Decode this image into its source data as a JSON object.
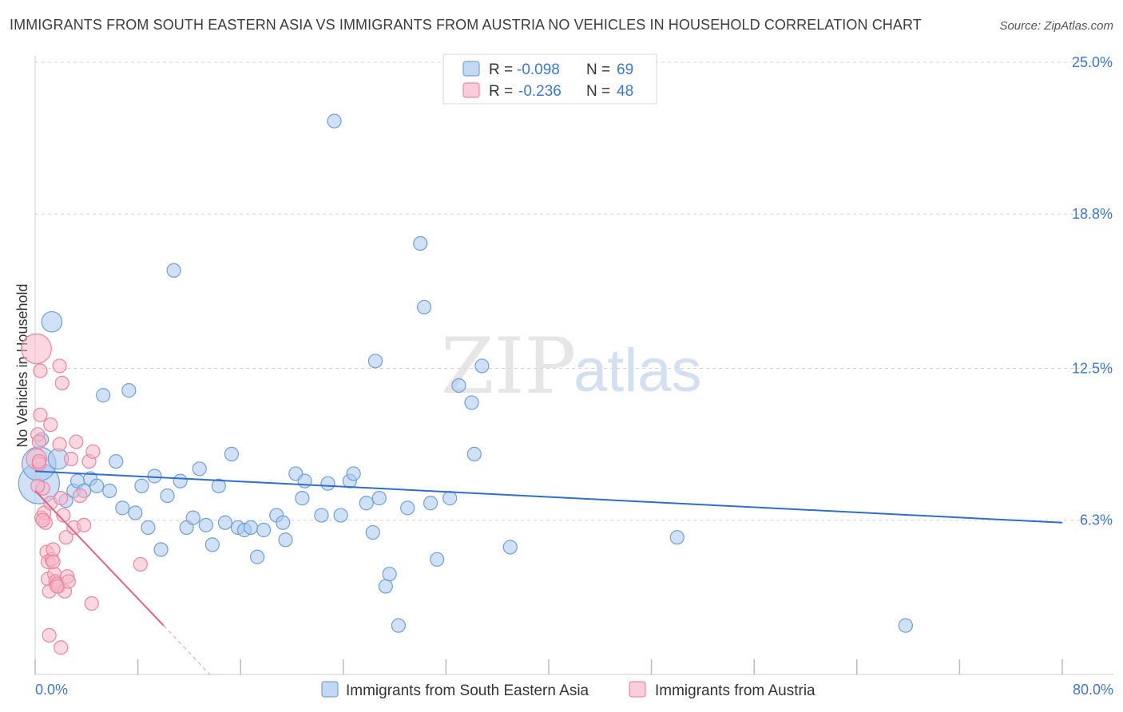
{
  "header": {
    "title": "IMMIGRANTS FROM SOUTH EASTERN ASIA VS IMMIGRANTS FROM AUSTRIA NO VEHICLES IN HOUSEHOLD CORRELATION CHART",
    "source": "Source: ZipAtlas.com"
  },
  "watermark": {
    "zip": "ZIP",
    "atlas": "atlas"
  },
  "legend": {
    "rows": [
      {
        "r_label": "R =",
        "r_value": "-0.098",
        "n_label": "N =",
        "n_value": "69",
        "color": "#a9c8ee",
        "stroke": "#7aa3d8"
      },
      {
        "r_label": "R =",
        "r_value": "-0.236",
        "n_label": "N =",
        "n_value": "48",
        "color": "#f7b8cb",
        "stroke": "#e88aa7"
      }
    ]
  },
  "colors": {
    "blue_fill": "#a9c8ee",
    "blue_stroke": "#6f9fd9",
    "blue_line": "#2e6fcc",
    "pink_fill": "#f5b7c9",
    "pink_stroke": "#e8879f",
    "pink_line": "#e4608a",
    "grid": "#d6d6d6",
    "tick_text": "#3d78c9"
  },
  "chart_data": {
    "type": "scatter",
    "title": "IMMIGRANTS FROM SOUTH EASTERN ASIA VS IMMIGRANTS FROM AUSTRIA NO VEHICLES IN HOUSEHOLD CORRELATION CHART",
    "xlabel": "",
    "ylabel": "No Vehicles in Household",
    "xlim": [
      0,
      80
    ],
    "ylim": [
      0,
      25.0
    ],
    "x_tick_labels": [
      "0.0%",
      "80.0%"
    ],
    "y_ticks": [
      6.3,
      12.5,
      18.8,
      25.0
    ],
    "y_tick_labels": [
      "6.3%",
      "12.5%",
      "18.8%",
      "25.0%"
    ],
    "grid": "horizontal dashed",
    "legend_position": "top-center",
    "series": [
      {
        "name": "Immigrants from South Eastern Asia",
        "R": -0.098,
        "N": 69,
        "trend": {
          "x": [
            0,
            80
          ],
          "y": [
            8.3,
            6.2
          ]
        },
        "points": [
          [
            0.3,
            7.8,
            3
          ],
          [
            0.3,
            8.6,
            2.5
          ],
          [
            1.3,
            14.4,
            1.5
          ],
          [
            1.8,
            8.8,
            1.5
          ],
          [
            2.4,
            7.1,
            1
          ],
          [
            3.0,
            7.5,
            1
          ],
          [
            3.3,
            7.9,
            1
          ],
          [
            3.8,
            7.5,
            1
          ],
          [
            4.3,
            8.0,
            1
          ],
          [
            4.8,
            7.7,
            1
          ],
          [
            5.3,
            11.4,
            1
          ],
          [
            5.8,
            7.5,
            1
          ],
          [
            6.3,
            8.7,
            1
          ],
          [
            6.8,
            6.8,
            1
          ],
          [
            7.3,
            11.6,
            1
          ],
          [
            7.8,
            6.6,
            1
          ],
          [
            8.3,
            7.7,
            1
          ],
          [
            8.8,
            6.0,
            1
          ],
          [
            9.3,
            8.1,
            1
          ],
          [
            9.8,
            5.1,
            1
          ],
          [
            10.3,
            7.3,
            1
          ],
          [
            10.8,
            16.5,
            1
          ],
          [
            11.3,
            7.9,
            1
          ],
          [
            11.8,
            6.0,
            1
          ],
          [
            12.3,
            6.4,
            1
          ],
          [
            12.8,
            8.4,
            1
          ],
          [
            13.3,
            6.1,
            1
          ],
          [
            13.8,
            5.3,
            1
          ],
          [
            14.3,
            7.7,
            1
          ],
          [
            14.8,
            6.2,
            1
          ],
          [
            15.3,
            9.0,
            1
          ],
          [
            15.8,
            6.0,
            1
          ],
          [
            16.3,
            5.9,
            1
          ],
          [
            16.8,
            6.0,
            1
          ],
          [
            17.3,
            4.8,
            1
          ],
          [
            17.8,
            5.9,
            1
          ],
          [
            18.8,
            6.5,
            1
          ],
          [
            19.3,
            6.2,
            1
          ],
          [
            19.5,
            5.5,
            1
          ],
          [
            20.3,
            8.2,
            1
          ],
          [
            20.8,
            7.2,
            1
          ],
          [
            21.0,
            7.9,
            1
          ],
          [
            22.3,
            6.5,
            1
          ],
          [
            22.8,
            7.8,
            1
          ],
          [
            23.3,
            22.6,
            1
          ],
          [
            23.8,
            6.5,
            1
          ],
          [
            24.5,
            7.9,
            1
          ],
          [
            24.8,
            8.2,
            1
          ],
          [
            25.8,
            7.0,
            1
          ],
          [
            26.3,
            5.8,
            1
          ],
          [
            26.5,
            12.8,
            1
          ],
          [
            26.8,
            7.2,
            1
          ],
          [
            27.3,
            3.6,
            1
          ],
          [
            27.6,
            4.1,
            1
          ],
          [
            28.3,
            2.0,
            1
          ],
          [
            29.0,
            6.8,
            1
          ],
          [
            30.0,
            17.6,
            1
          ],
          [
            30.3,
            15.0,
            1
          ],
          [
            30.8,
            7.0,
            1
          ],
          [
            31.3,
            4.7,
            1
          ],
          [
            32.3,
            7.2,
            1
          ],
          [
            33.0,
            11.8,
            1
          ],
          [
            34.0,
            11.1,
            1
          ],
          [
            34.2,
            9.0,
            1
          ],
          [
            34.8,
            12.6,
            1
          ],
          [
            37.0,
            5.2,
            1
          ],
          [
            50.0,
            5.6,
            1
          ],
          [
            67.8,
            2.0,
            1
          ],
          [
            0.5,
            9.6,
            1
          ]
        ]
      },
      {
        "name": "Immigrants from Austria",
        "R": -0.236,
        "N": 48,
        "trend": {
          "x": [
            0,
            10.0
          ],
          "y": [
            7.5,
            2.0
          ]
        },
        "trend_dashed": {
          "x": [
            10.0,
            13.6
          ],
          "y": [
            2.0,
            0.0
          ]
        },
        "points": [
          [
            0.1,
            13.3,
            2.2
          ],
          [
            0.1,
            8.8,
            1.5
          ],
          [
            0.2,
            9.8,
            1
          ],
          [
            0.3,
            9.5,
            1
          ],
          [
            0.3,
            8.6,
            1
          ],
          [
            0.4,
            10.6,
            1
          ],
          [
            0.4,
            12.4,
            1
          ],
          [
            0.5,
            6.4,
            1
          ],
          [
            0.6,
            7.6,
            1
          ],
          [
            0.7,
            6.6,
            1
          ],
          [
            0.8,
            6.2,
            1
          ],
          [
            0.9,
            5.0,
            1
          ],
          [
            1.0,
            4.6,
            1
          ],
          [
            1.0,
            3.9,
            1
          ],
          [
            1.1,
            3.4,
            1
          ],
          [
            1.2,
            10.2,
            1
          ],
          [
            1.2,
            7.0,
            1
          ],
          [
            1.3,
            4.7,
            1
          ],
          [
            1.4,
            5.1,
            1
          ],
          [
            1.5,
            4.1,
            1
          ],
          [
            1.6,
            3.8,
            1
          ],
          [
            1.7,
            3.7,
            1
          ],
          [
            1.8,
            3.6,
            1
          ],
          [
            1.9,
            12.6,
            1
          ],
          [
            1.9,
            9.4,
            1
          ],
          [
            2.0,
            7.2,
            1
          ],
          [
            2.1,
            11.9,
            1
          ],
          [
            2.2,
            6.5,
            1
          ],
          [
            2.3,
            3.4,
            1
          ],
          [
            2.4,
            5.6,
            1
          ],
          [
            2.5,
            4.0,
            1
          ],
          [
            2.6,
            3.8,
            1
          ],
          [
            2.8,
            8.8,
            1
          ],
          [
            3.0,
            6.0,
            1
          ],
          [
            3.2,
            9.5,
            1
          ],
          [
            3.5,
            7.3,
            1
          ],
          [
            3.8,
            6.1,
            1
          ],
          [
            4.2,
            8.7,
            1
          ],
          [
            4.5,
            9.1,
            1
          ],
          [
            1.1,
            1.6,
            1
          ],
          [
            2.0,
            1.1,
            1
          ],
          [
            4.4,
            2.9,
            1
          ],
          [
            8.2,
            4.5,
            1
          ],
          [
            0.6,
            6.3,
            1
          ],
          [
            1.4,
            4.6,
            1
          ],
          [
            1.7,
            3.6,
            1
          ],
          [
            0.3,
            8.7,
            1
          ],
          [
            0.2,
            7.7,
            1
          ]
        ]
      }
    ]
  },
  "bottom_legend": {
    "items": [
      {
        "label": "Immigrants from South Eastern Asia"
      },
      {
        "label": "Immigrants from Austria"
      }
    ]
  }
}
